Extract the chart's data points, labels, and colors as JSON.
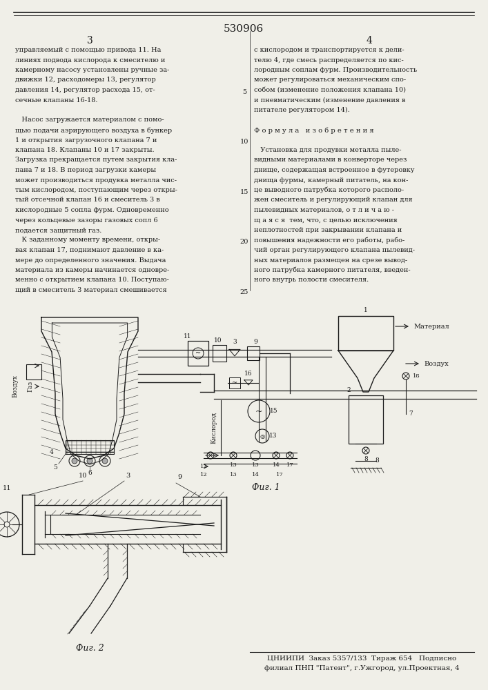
{
  "patent_number": "530906",
  "page_left": "3",
  "page_right": "4",
  "background_color": "#f0efe8",
  "text_color": "#1a1a1a",
  "left_column_text": [
    "управляемый с помощью привода 11. На",
    "линиях подвода кислорода к смесителю и",
    "камерному насосу установлены ручные за-",
    "движки 12, расходомеры 13, регулятор",
    "давления 14, регулятор расхода 15, от-",
    "сечные клапаны 16-18.",
    "",
    "   Насос загружается материалом с помо-",
    "щью подачи аэрирующего воздуха в бункер",
    "1 и открытия загрузочного клапана 7 и",
    "клапана 18. Клапаны 10 и 17 закрыты.",
    "Загрузка прекращается путем закрытия кла-",
    "пана 7 и 18. В период загрузки камеры",
    "может производиться продувка металла чис-",
    "тым кислородом, поступающим через откры-",
    "тый отсечной клапан 16 и смеситель 3 в",
    "кислородные 5 сопла фурм. Одновременно",
    "через кольцевые зазоры газовых сопл 6",
    "подается защитный газ.",
    "   К заданному моменту времени, откры-",
    "вая клапан 17, поднимают давление в ка-",
    "мере до определенного значения. Выдача",
    "материала из камеры начинается одновре-",
    "менно с открытием клапана 10. Поступаю-",
    "щий в смеситель 3 материал смешивается"
  ],
  "right_column_text": [
    "с кислородом и транспортируется к дели-",
    "телю 4, где смесь распределяется по кис-",
    "лородным соплам фурм. Производительность",
    "может регулироваться механическим спо-",
    "собом (изменение положения клапана 10)",
    "и пневматическим (изменение давления в",
    "питателе регулятором 14).",
    "",
    "Ф о р м у л а   и з о б р е т е н и я",
    "",
    "   Установка для продувки металла пыле-",
    "видными материалами в конверторе через",
    "днище, содержащая встроенное в футеровку",
    "днища фурмы, камерный питатель, на кон-",
    "це выводного патрубка которого располо-",
    "жен смеситель и регулирующий клапан для",
    "пылевидных материалов, о т л и ч а ю -",
    "щ а я с я  тем, что, с целью исключения",
    "неплотностей при закрывании клапана и",
    "повышения надежности его работы, рабо-",
    "чий орган регулирующего клапана пылевид-",
    "ных материалов размещен на срезе вывод-",
    "ного патрубка камерного питателя, введен-",
    "ного внутрь полости смесителя."
  ],
  "line_numbers": [
    "5",
    "10",
    "15",
    "20",
    "25"
  ],
  "footer_line1": "ЦНИИПИ  Заказ 5357/133  Тираж 654   Подписно",
  "footer_line2": "филиал ПНП \"Патент\", г.Ужгород, ул.Проектная, 4",
  "fig1_label": "Фиг. 1",
  "fig2_label": "Фиг. 2"
}
